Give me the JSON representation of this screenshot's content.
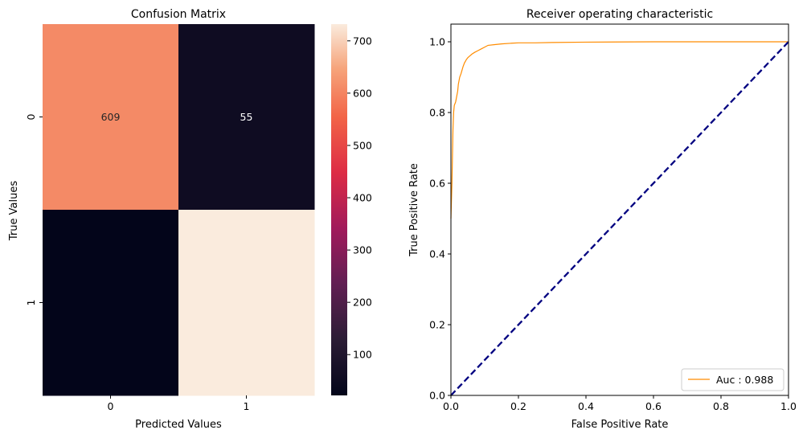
{
  "chart_data": [
    {
      "type": "heatmap",
      "title": "Confusion Matrix",
      "xlabel": "Predicted Values",
      "ylabel": "True Values",
      "x_categories": [
        "0",
        "1"
      ],
      "y_categories": [
        "0",
        "1"
      ],
      "values": [
        [
          609,
          55
        ],
        [
          22,
          732
        ]
      ],
      "annotations": [
        [
          "609",
          "55"
        ],
        [
          "",
          ""
        ]
      ],
      "colorbar": {
        "range": [
          22,
          732
        ],
        "ticks": [
          100,
          200,
          300,
          400,
          500,
          600,
          700
        ]
      }
    },
    {
      "type": "line",
      "title": "Receiver operating characteristic",
      "xlabel": "False Positive Rate",
      "ylabel": "True Positive Rate",
      "xlim": [
        0.0,
        1.0
      ],
      "ylim": [
        0.0,
        1.05
      ],
      "xticks": [
        "0.0",
        "0.2",
        "0.4",
        "0.6",
        "0.8",
        "1.0"
      ],
      "yticks": [
        "0.0",
        "0.2",
        "0.4",
        "0.6",
        "0.8",
        "1.0"
      ],
      "legend_position": "lower-right",
      "series": [
        {
          "name": "Auc : 0.988",
          "color": "#ff8c00",
          "x": [
            0.0,
            0.003,
            0.004,
            0.005,
            0.006,
            0.008,
            0.01,
            0.014,
            0.016,
            0.02,
            0.022,
            0.026,
            0.03,
            0.033,
            0.036,
            0.04,
            0.046,
            0.05,
            0.056,
            0.062,
            0.07,
            0.08,
            0.09,
            0.1,
            0.11,
            0.13,
            0.15,
            0.18,
            0.2,
            0.25,
            0.3,
            0.4,
            0.6,
            0.8,
            1.0
          ],
          "y": [
            0.5,
            0.6,
            0.65,
            0.7,
            0.75,
            0.8,
            0.82,
            0.83,
            0.84,
            0.86,
            0.88,
            0.9,
            0.91,
            0.92,
            0.93,
            0.94,
            0.95,
            0.955,
            0.96,
            0.965,
            0.97,
            0.975,
            0.98,
            0.985,
            0.99,
            0.992,
            0.994,
            0.996,
            0.997,
            0.997,
            0.998,
            0.999,
            1.0,
            1.0,
            1.0
          ]
        },
        {
          "name": "",
          "color": "#000080",
          "style": "dashed",
          "x": [
            0.0,
            1.0
          ],
          "y": [
            0.0,
            1.0
          ]
        }
      ]
    }
  ]
}
